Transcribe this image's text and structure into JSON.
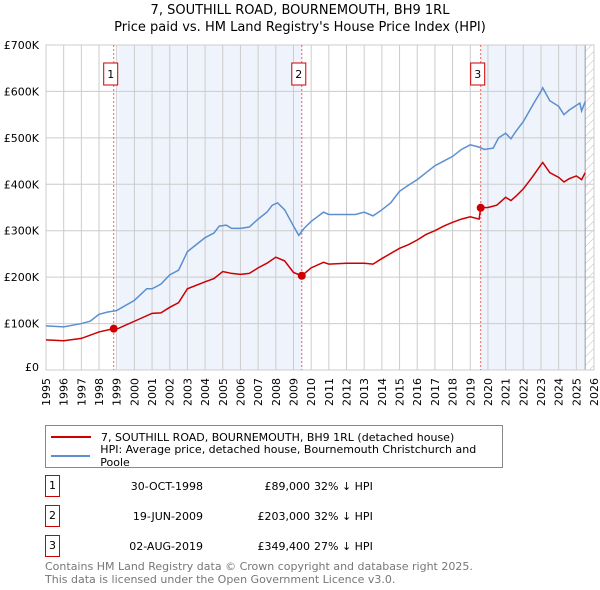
{
  "header": {
    "title": "7, SOUTHILL ROAD, BOURNEMOUTH, BH9 1RL",
    "subtitle": "Price paid vs. HM Land Registry's House Price Index (HPI)"
  },
  "chart_data": {
    "type": "line",
    "title": "7, SOUTHILL ROAD, BOURNEMOUTH, BH9 1RL",
    "subtitle": "Price paid vs. HM Land Registry's House Price Index (HPI)",
    "xlim": [
      1995,
      2026
    ],
    "ylim": [
      0,
      700000
    ],
    "xticks": [
      "1995",
      "1996",
      "1997",
      "1998",
      "1999",
      "2000",
      "2001",
      "2002",
      "2003",
      "2004",
      "2005",
      "2006",
      "2007",
      "2008",
      "2009",
      "2010",
      "2011",
      "2012",
      "2013",
      "2014",
      "2015",
      "2016",
      "2017",
      "2018",
      "2019",
      "2020",
      "2021",
      "2022",
      "2023",
      "2024",
      "2025",
      "2026"
    ],
    "yticks": [
      {
        "v": 0,
        "label": "£0"
      },
      {
        "v": 100000,
        "label": "£100K"
      },
      {
        "v": 200000,
        "label": "£200K"
      },
      {
        "v": 300000,
        "label": "£300K"
      },
      {
        "v": 400000,
        "label": "£400K"
      },
      {
        "v": 500000,
        "label": "£500K"
      },
      {
        "v": 600000,
        "label": "£600K"
      },
      {
        "v": 700000,
        "label": "£700K"
      }
    ],
    "grid": true,
    "series": [
      {
        "name": "7, SOUTHILL ROAD, BOURNEMOUTH, BH9 1RL (detached house)",
        "color": "#cc0000",
        "points": [
          [
            1995,
            65
          ],
          [
            1996,
            63
          ],
          [
            1997,
            68
          ],
          [
            1998,
            82
          ],
          [
            1998.83,
            89
          ],
          [
            1999,
            88
          ],
          [
            2000,
            105
          ],
          [
            2001,
            122
          ],
          [
            2001.5,
            123
          ],
          [
            2002,
            135
          ],
          [
            2002.5,
            145
          ],
          [
            2003,
            175
          ],
          [
            2004,
            190
          ],
          [
            2004.5,
            197
          ],
          [
            2005,
            212
          ],
          [
            2005.5,
            208
          ],
          [
            2006,
            206
          ],
          [
            2006.5,
            208
          ],
          [
            2007,
            220
          ],
          [
            2007.5,
            230
          ],
          [
            2008,
            243
          ],
          [
            2008.5,
            235
          ],
          [
            2009,
            210
          ],
          [
            2009.47,
            203
          ],
          [
            2010,
            220
          ],
          [
            2010.7,
            232
          ],
          [
            2011,
            228
          ],
          [
            2012,
            230
          ],
          [
            2013,
            230
          ],
          [
            2013.5,
            228
          ],
          [
            2014,
            240
          ],
          [
            2015,
            262
          ],
          [
            2015.5,
            270
          ],
          [
            2016,
            280
          ],
          [
            2016.5,
            292
          ],
          [
            2017,
            300
          ],
          [
            2017.5,
            310
          ],
          [
            2018,
            318
          ],
          [
            2018.5,
            325
          ],
          [
            2019,
            330
          ],
          [
            2019.5,
            325
          ],
          [
            2019.59,
            349.4
          ],
          [
            2020,
            350
          ],
          [
            2020.5,
            355
          ],
          [
            2021,
            372
          ],
          [
            2021.3,
            365
          ],
          [
            2021.6,
            375
          ],
          [
            2022,
            390
          ],
          [
            2022.5,
            415
          ],
          [
            2023,
            442
          ],
          [
            2023.1,
            447
          ],
          [
            2023.5,
            425
          ],
          [
            2024,
            415
          ],
          [
            2024.3,
            405
          ],
          [
            2024.6,
            412
          ],
          [
            2025,
            418
          ],
          [
            2025.3,
            410
          ],
          [
            2025.5,
            425
          ]
        ]
      },
      {
        "name": "HPI: Average price, detached house, Bournemouth Christchurch and Poole",
        "color": "#5b8fd0",
        "points": [
          [
            1995,
            95
          ],
          [
            1996,
            93
          ],
          [
            1997,
            100
          ],
          [
            1997.5,
            105
          ],
          [
            1998,
            120
          ],
          [
            1998.5,
            125
          ],
          [
            1999,
            128
          ],
          [
            2000,
            150
          ],
          [
            2000.7,
            175
          ],
          [
            2001,
            175
          ],
          [
            2001.5,
            185
          ],
          [
            2002,
            205
          ],
          [
            2002.5,
            215
          ],
          [
            2003,
            255
          ],
          [
            2003.5,
            270
          ],
          [
            2004,
            285
          ],
          [
            2004.5,
            295
          ],
          [
            2004.8,
            310
          ],
          [
            2005.2,
            312
          ],
          [
            2005.5,
            305
          ],
          [
            2006,
            305
          ],
          [
            2006.5,
            308
          ],
          [
            2007,
            325
          ],
          [
            2007.5,
            340
          ],
          [
            2007.8,
            355
          ],
          [
            2008.1,
            360
          ],
          [
            2008.5,
            345
          ],
          [
            2009,
            310
          ],
          [
            2009.3,
            290
          ],
          [
            2009.6,
            305
          ],
          [
            2010,
            320
          ],
          [
            2010.7,
            340
          ],
          [
            2011,
            335
          ],
          [
            2012,
            335
          ],
          [
            2012.5,
            335
          ],
          [
            2013,
            340
          ],
          [
            2013.5,
            332
          ],
          [
            2014,
            345
          ],
          [
            2014.5,
            360
          ],
          [
            2015,
            385
          ],
          [
            2015.5,
            398
          ],
          [
            2016,
            410
          ],
          [
            2016.5,
            425
          ],
          [
            2017,
            440
          ],
          [
            2017.5,
            450
          ],
          [
            2018,
            460
          ],
          [
            2018.5,
            475
          ],
          [
            2019,
            485
          ],
          [
            2019.5,
            480
          ],
          [
            2019.8,
            475
          ],
          [
            2020.3,
            478
          ],
          [
            2020.6,
            500
          ],
          [
            2021,
            510
          ],
          [
            2021.3,
            498
          ],
          [
            2021.6,
            515
          ],
          [
            2022,
            535
          ],
          [
            2022.3,
            555
          ],
          [
            2022.6,
            575
          ],
          [
            2023,
            600
          ],
          [
            2023.1,
            608
          ],
          [
            2023.5,
            580
          ],
          [
            2024,
            568
          ],
          [
            2024.3,
            550
          ],
          [
            2024.6,
            560
          ],
          [
            2025,
            570
          ],
          [
            2025.2,
            575
          ],
          [
            2025.3,
            558
          ],
          [
            2025.5,
            578
          ]
        ]
      }
    ],
    "sales": [
      {
        "label": "1",
        "x": 1998.83,
        "price": 89000
      },
      {
        "label": "2",
        "x": 2009.47,
        "price": 203000
      },
      {
        "label": "3",
        "x": 2019.59,
        "price": 349400
      }
    ],
    "shaded": [
      [
        1999.1,
        2009.5
      ],
      [
        2019.6,
        2025.5
      ]
    ],
    "hatch_from": 2025.5,
    "legend_position": "bottom"
  },
  "legend": [
    "7, SOUTHILL ROAD, BOURNEMOUTH, BH9 1RL (detached house)",
    "HPI: Average price, detached house, Bournemouth Christchurch and Poole"
  ],
  "table": [
    {
      "n": "1",
      "date": "30-OCT-1998",
      "price": "£89,000",
      "hpi": "32% ↓ HPI"
    },
    {
      "n": "2",
      "date": "19-JUN-2009",
      "price": "£203,000",
      "hpi": "32% ↓ HPI"
    },
    {
      "n": "3",
      "date": "02-AUG-2019",
      "price": "£349,400",
      "hpi": "27% ↓ HPI"
    }
  ],
  "footer": [
    "Contains HM Land Registry data © Crown copyright and database right 2025.",
    "This data is licensed under the Open Government Licence v3.0."
  ]
}
